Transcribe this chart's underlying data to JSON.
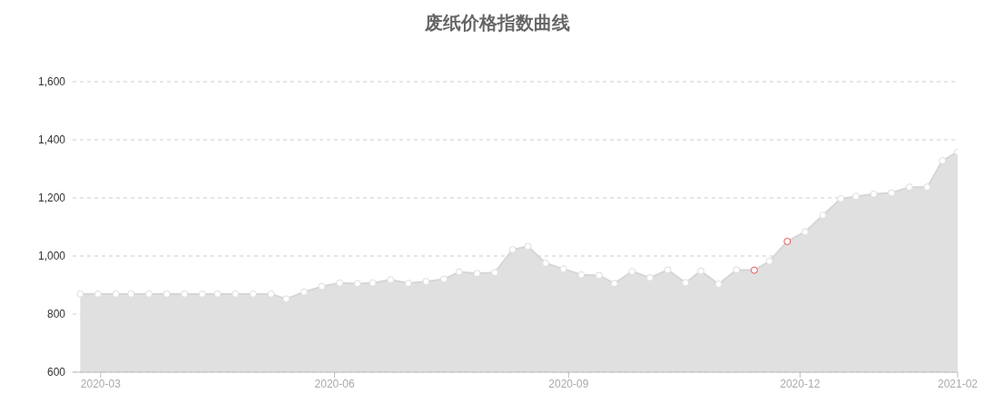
{
  "chart_data": {
    "type": "area",
    "title": "废纸价格指数曲线",
    "x": [
      "2020-02-22",
      "2020-02-29",
      "2020-03-07",
      "2020-03-13",
      "2020-03-20",
      "2020-03-27",
      "2020-04-03",
      "2020-04-10",
      "2020-04-16",
      "2020-04-23",
      "2020-04-30",
      "2020-05-07",
      "2020-05-13",
      "2020-05-20",
      "2020-05-27",
      "2020-06-03",
      "2020-06-10",
      "2020-06-16",
      "2020-06-23",
      "2020-06-30",
      "2020-07-07",
      "2020-07-14",
      "2020-07-20",
      "2020-07-27",
      "2020-08-03",
      "2020-08-10",
      "2020-08-16",
      "2020-08-23",
      "2020-08-30",
      "2020-09-06",
      "2020-09-13",
      "2020-09-19",
      "2020-09-26",
      "2020-10-03",
      "2020-10-10",
      "2020-10-17",
      "2020-10-23",
      "2020-10-30",
      "2020-11-06",
      "2020-11-13",
      "2020-11-19",
      "2020-11-26",
      "2020-12-03",
      "2020-12-10",
      "2020-12-17",
      "2020-12-23",
      "2020-12-30",
      "2021-01-06",
      "2021-01-13",
      "2021-01-20",
      "2021-01-26",
      "2021-02-01"
    ],
    "series": [
      {
        "color": "#e0e0e0",
        "values": [
          869,
          869,
          869,
          869,
          869,
          869,
          869,
          869,
          869,
          869,
          869,
          869,
          852,
          876,
          895,
          907,
          905,
          907,
          918,
          906,
          912,
          920,
          945,
          940,
          943,
          1022,
          1033,
          975,
          955,
          935,
          933,
          905,
          947,
          925,
          952,
          908,
          948,
          903,
          952,
          951,
          982,
          1050,
          1083,
          1140,
          1197,
          1205,
          1213,
          1217,
          1237,
          1237,
          1328,
          1358
        ],
        "colors": [
          "#dddddd",
          "#dddddd",
          "#dddddd",
          "#dddddd",
          "#dddddd",
          "#dddddd",
          "#dddddd",
          "#dddddd",
          "#dddddd",
          "#dddddd",
          "#dddddd",
          "#dddddd",
          "#dddddd",
          "#dddddd",
          "#dddddd",
          "#dddddd",
          "#dddddd",
          "#dddddd",
          "#dddddd",
          "#dddddd",
          "#dddddd",
          "#dddddd",
          "#dddddd",
          "#dddddd",
          "#dddddd",
          "#dddddd",
          "#dddddd",
          "#dddddd",
          "#dddddd",
          "#dddddd",
          "#dddddd",
          "#dddddd",
          "#dddddd",
          "#dddddd",
          "#dddddd",
          "#dddddd",
          "#dddddd",
          "#dddddd",
          "#dddddd",
          "#e05555",
          "#dddddd",
          "#e05555",
          "#dddddd",
          "#dddddd",
          "#dddddd",
          "#dddddd",
          "#dddddd",
          "#dddddd",
          "#dddddd",
          "#dddddd",
          "#dddddd",
          "#dddddd"
        ]
      }
    ],
    "xlim": [
      "2020-02-19",
      "2021-02-01"
    ],
    "xticks": [
      "2020-03",
      "2020-06",
      "2020-09",
      "2020-12",
      "2021-02"
    ],
    "ylim": [
      600,
      1600
    ],
    "yticks": [
      {
        "value": 600,
        "label": "600"
      },
      {
        "value": 800,
        "label": "800"
      },
      {
        "value": 1000,
        "label": "1,000"
      },
      {
        "value": 1200,
        "label": "1,200"
      },
      {
        "value": 1400,
        "label": "1,400"
      },
      {
        "value": 1600,
        "label": "1,600"
      }
    ],
    "grid": "y",
    "marker": "circle",
    "legend": false
  }
}
